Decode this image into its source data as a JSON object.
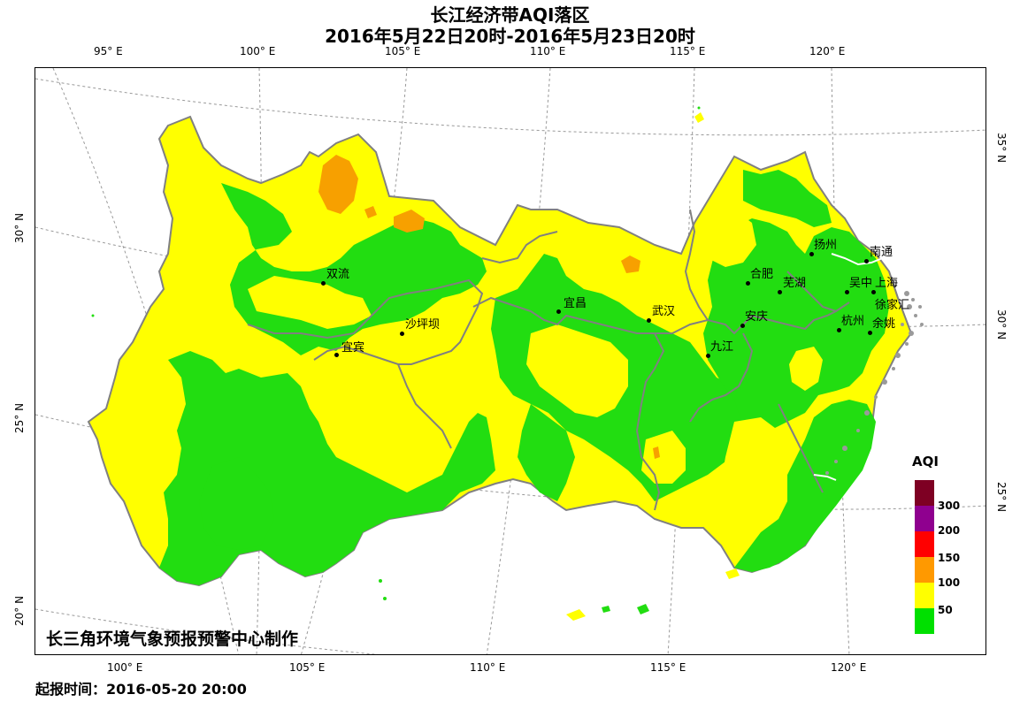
{
  "title_line1": "长江经济带AQI落区",
  "title_line2": "2016年5月22日20时-2016年5月23日20时",
  "credit": "长三角环境气象预报预警中心制作",
  "issue_time": "起报时间：2016-05-20 20:00",
  "legend": {
    "title": "AQI",
    "bins": [
      {
        "label": "",
        "color": "#7e0023"
      },
      {
        "label": "300",
        "color": "#8f008f"
      },
      {
        "label": "200",
        "color": "#ff0000"
      },
      {
        "label": "150",
        "color": "#ff9900"
      },
      {
        "label": "100",
        "color": "#ffff00"
      },
      {
        "label": "50",
        "color": "#00e000"
      }
    ]
  },
  "colors": {
    "good": "#22dd11",
    "moderate": "#ffff00",
    "light": "#f7a000",
    "boundary": "#808080",
    "grid": "#999999"
  },
  "lon_top": [
    "95° E",
    "100° E",
    "105° E",
    "110° E",
    "115° E",
    "120° E"
  ],
  "lon_bottom": [
    "100° E",
    "105° E",
    "110° E",
    "115° E",
    "120° E"
  ],
  "lat_left": [
    "30° N",
    "25° N",
    "20° N"
  ],
  "lat_right": [
    "35° N",
    "30° N",
    "25° N"
  ],
  "cities": [
    "双流",
    "沙坪坝",
    "宜宾",
    "宜昌",
    "武汉",
    "合肥",
    "芜湖",
    "安庆",
    "九江",
    "扬州",
    "南通",
    "吴中",
    "上海",
    "徐家汇",
    "杭州",
    "余姚"
  ]
}
